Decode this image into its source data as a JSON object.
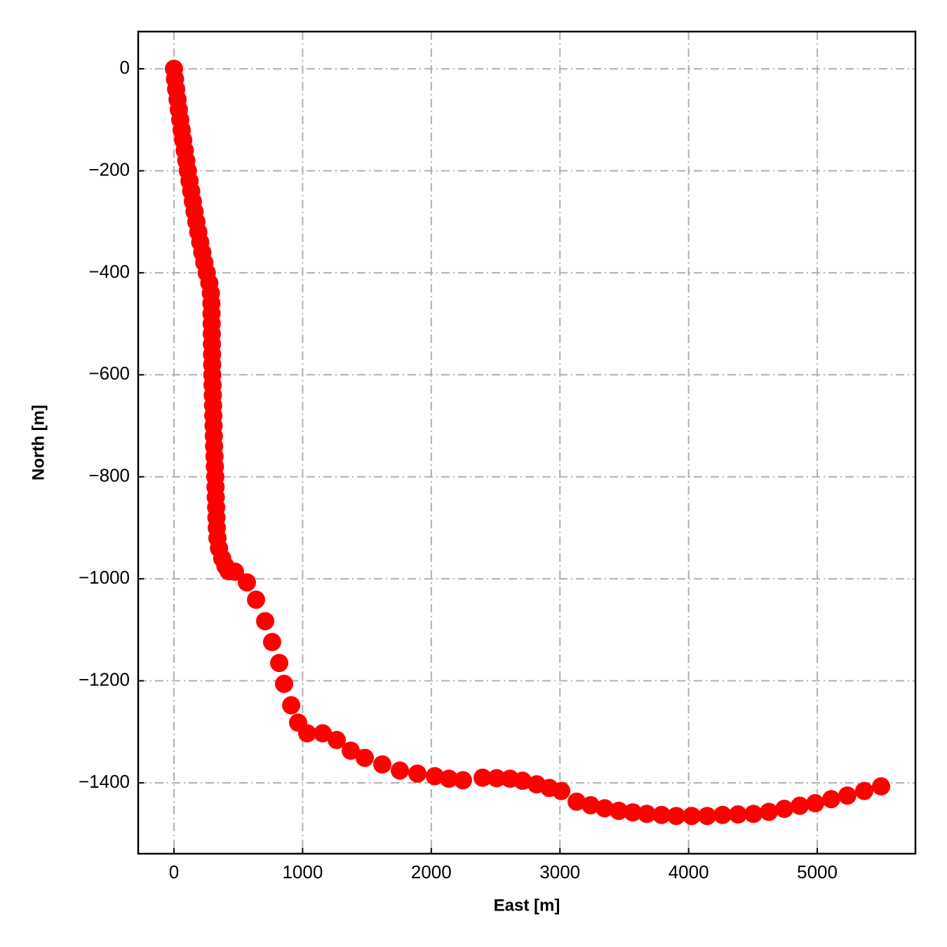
{
  "chart_data": {
    "type": "scatter",
    "xlabel": "East [m]",
    "ylabel": "North [m]",
    "color": "#ff0000",
    "grid": true,
    "xlim": [
      -278,
      5763
    ],
    "ylim": [
      -1539,
      73
    ],
    "xticks": [
      0,
      1000,
      2000,
      3000,
      4000,
      5000
    ],
    "yticks": [
      {
        "value": -1400,
        "label": "−1400"
      },
      {
        "value": -1200,
        "label": "−1200"
      },
      {
        "value": -1000,
        "label": "−1000"
      },
      {
        "value": -800,
        "label": "−800"
      },
      {
        "value": -600,
        "label": "−600"
      },
      {
        "value": -400,
        "label": "−400"
      },
      {
        "value": -200,
        "label": "−200"
      },
      0
    ],
    "x": [
      0,
      8,
      17,
      28,
      38,
      49,
      60,
      72,
      84,
      96,
      108,
      121,
      134,
      147,
      160,
      174,
      189,
      204,
      220,
      236,
      255,
      275,
      287,
      291,
      292,
      293,
      294,
      295,
      296,
      297,
      298,
      300,
      302,
      304,
      306,
      308,
      310,
      312,
      315,
      318,
      321,
      323,
      325,
      328,
      330,
      333,
      338,
      350,
      375,
      400,
      425,
      474,
      567,
      638,
      709,
      763,
      818,
      856,
      911,
      965,
      1036,
      1156,
      1265,
      1374,
      1483,
      1619,
      1756,
      1892,
      2028,
      2137,
      2246,
      2399,
      2508,
      2612,
      2710,
      2819,
      2917,
      3010,
      3130,
      3239,
      3348,
      3457,
      3566,
      3675,
      3790,
      3904,
      4024,
      4144,
      4264,
      4384,
      4504,
      4624,
      4744,
      4864,
      4984,
      5109,
      5234,
      5365,
      5496
    ],
    "values": [
      0,
      -20,
      -40,
      -60,
      -80,
      -100,
      -120,
      -140,
      -160,
      -180,
      -200,
      -220,
      -240,
      -260,
      -280,
      -300,
      -320,
      -340,
      -360,
      -380,
      -400,
      -420,
      -440,
      -460,
      -480,
      -500,
      -520,
      -540,
      -560,
      -580,
      -600,
      -620,
      -640,
      -660,
      -680,
      -700,
      -720,
      -740,
      -760,
      -780,
      -800,
      -820,
      -840,
      -860,
      -880,
      -900,
      -920,
      -940,
      -960,
      -975,
      -985,
      -986,
      -1007,
      -1041,
      -1083,
      -1124,
      -1165,
      -1206,
      -1248,
      -1282,
      -1303,
      -1303,
      -1316,
      -1337,
      -1351,
      -1364,
      -1376,
      -1382,
      -1387,
      -1392,
      -1395,
      -1390,
      -1391,
      -1392,
      -1396,
      -1403,
      -1410,
      -1416,
      -1437,
      -1444,
      -1450,
      -1455,
      -1458,
      -1461,
      -1463,
      -1465,
      -1465,
      -1465,
      -1463,
      -1462,
      -1461,
      -1457,
      -1451,
      -1445,
      -1440,
      -1432,
      -1425,
      -1416,
      -1407
    ]
  }
}
